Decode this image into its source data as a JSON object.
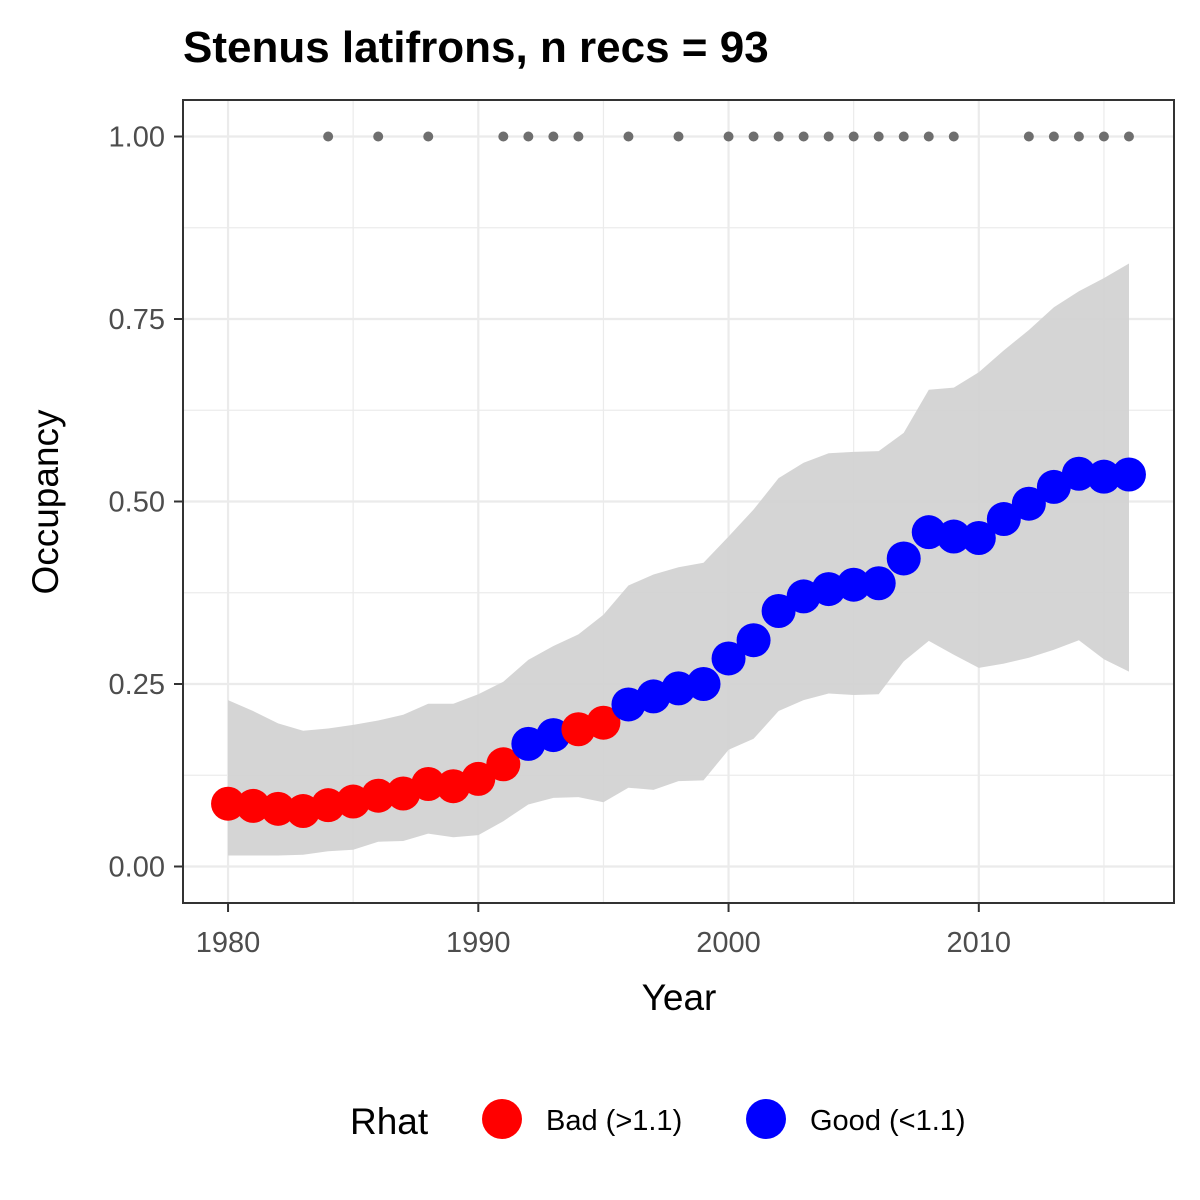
{
  "chart_data": {
    "type": "line",
    "title": "Stenus latifrons, n recs = 93",
    "xlabel": "Year",
    "ylabel": "Occupancy",
    "xlim": [
      1978.2,
      2017.8
    ],
    "ylim": [
      -0.05,
      1.05
    ],
    "x_ticks": [
      1980,
      1990,
      2000,
      2010
    ],
    "x_tick_labels": [
      "1980",
      "1990",
      "2000",
      "2010"
    ],
    "y_ticks": [
      0,
      0.25,
      0.5,
      0.75,
      1.0
    ],
    "y_tick_labels": [
      "0.00",
      "0.25",
      "0.50",
      "0.75",
      "1.00"
    ],
    "grid": true,
    "legend": {
      "title": "Rhat",
      "position": "bottom",
      "entries": [
        {
          "label": "Bad (>1.1)",
          "color": "#ff0000"
        },
        {
          "label": "Good (<1.1)",
          "color": "#0000ff"
        }
      ]
    },
    "colors": {
      "bad": "#ff0000",
      "good": "#0000ff",
      "ribbon": "#d3d3d3",
      "record_dots": "#6e6e6e",
      "grid": "#ebebeb",
      "panel_border": "#333333"
    },
    "series": [
      {
        "name": "Occupancy",
        "points": [
          {
            "x": 1980,
            "y": 0.086,
            "lower": 0.015,
            "upper": 0.228,
            "rhat": "bad"
          },
          {
            "x": 1981,
            "y": 0.083,
            "lower": 0.015,
            "upper": 0.213,
            "rhat": "bad"
          },
          {
            "x": 1982,
            "y": 0.079,
            "lower": 0.015,
            "upper": 0.196,
            "rhat": "bad"
          },
          {
            "x": 1983,
            "y": 0.076,
            "lower": 0.016,
            "upper": 0.186,
            "rhat": "bad"
          },
          {
            "x": 1984,
            "y": 0.084,
            "lower": 0.021,
            "upper": 0.189,
            "rhat": "bad"
          },
          {
            "x": 1985,
            "y": 0.089,
            "lower": 0.023,
            "upper": 0.194,
            "rhat": "bad"
          },
          {
            "x": 1986,
            "y": 0.097,
            "lower": 0.034,
            "upper": 0.2,
            "rhat": "bad"
          },
          {
            "x": 1987,
            "y": 0.1,
            "lower": 0.035,
            "upper": 0.208,
            "rhat": "bad"
          },
          {
            "x": 1988,
            "y": 0.113,
            "lower": 0.045,
            "upper": 0.223,
            "rhat": "bad"
          },
          {
            "x": 1989,
            "y": 0.11,
            "lower": 0.04,
            "upper": 0.223,
            "rhat": "bad"
          },
          {
            "x": 1990,
            "y": 0.12,
            "lower": 0.043,
            "upper": 0.236,
            "rhat": "bad"
          },
          {
            "x": 1991,
            "y": 0.14,
            "lower": 0.062,
            "upper": 0.253,
            "rhat": "bad"
          },
          {
            "x": 1992,
            "y": 0.168,
            "lower": 0.085,
            "upper": 0.283,
            "rhat": "good"
          },
          {
            "x": 1993,
            "y": 0.18,
            "lower": 0.094,
            "upper": 0.302,
            "rhat": "good"
          },
          {
            "x": 1994,
            "y": 0.188,
            "lower": 0.095,
            "upper": 0.318,
            "rhat": "bad"
          },
          {
            "x": 1995,
            "y": 0.197,
            "lower": 0.088,
            "upper": 0.345,
            "rhat": "bad"
          },
          {
            "x": 1996,
            "y": 0.222,
            "lower": 0.108,
            "upper": 0.385,
            "rhat": "good"
          },
          {
            "x": 1997,
            "y": 0.233,
            "lower": 0.105,
            "upper": 0.4,
            "rhat": "good"
          },
          {
            "x": 1998,
            "y": 0.244,
            "lower": 0.117,
            "upper": 0.41,
            "rhat": "good"
          },
          {
            "x": 1999,
            "y": 0.25,
            "lower": 0.118,
            "upper": 0.416,
            "rhat": "good"
          },
          {
            "x": 2000,
            "y": 0.285,
            "lower": 0.16,
            "upper": 0.452,
            "rhat": "good"
          },
          {
            "x": 2001,
            "y": 0.31,
            "lower": 0.175,
            "upper": 0.489,
            "rhat": "good"
          },
          {
            "x": 2002,
            "y": 0.35,
            "lower": 0.213,
            "upper": 0.532,
            "rhat": "good"
          },
          {
            "x": 2003,
            "y": 0.37,
            "lower": 0.228,
            "upper": 0.553,
            "rhat": "good"
          },
          {
            "x": 2004,
            "y": 0.38,
            "lower": 0.237,
            "upper": 0.566,
            "rhat": "good"
          },
          {
            "x": 2005,
            "y": 0.386,
            "lower": 0.235,
            "upper": 0.568,
            "rhat": "good"
          },
          {
            "x": 2006,
            "y": 0.388,
            "lower": 0.236,
            "upper": 0.569,
            "rhat": "good"
          },
          {
            "x": 2007,
            "y": 0.422,
            "lower": 0.281,
            "upper": 0.594,
            "rhat": "good"
          },
          {
            "x": 2008,
            "y": 0.458,
            "lower": 0.309,
            "upper": 0.653,
            "rhat": "good"
          },
          {
            "x": 2009,
            "y": 0.452,
            "lower": 0.29,
            "upper": 0.656,
            "rhat": "good"
          },
          {
            "x": 2010,
            "y": 0.45,
            "lower": 0.272,
            "upper": 0.677,
            "rhat": "good"
          },
          {
            "x": 2011,
            "y": 0.476,
            "lower": 0.278,
            "upper": 0.707,
            "rhat": "good"
          },
          {
            "x": 2012,
            "y": 0.497,
            "lower": 0.286,
            "upper": 0.735,
            "rhat": "good"
          },
          {
            "x": 2013,
            "y": 0.52,
            "lower": 0.297,
            "upper": 0.766,
            "rhat": "good"
          },
          {
            "x": 2014,
            "y": 0.538,
            "lower": 0.31,
            "upper": 0.788,
            "rhat": "good"
          },
          {
            "x": 2015,
            "y": 0.534,
            "lower": 0.284,
            "upper": 0.806,
            "rhat": "good"
          },
          {
            "x": 2016,
            "y": 0.537,
            "lower": 0.267,
            "upper": 0.826,
            "rhat": "good"
          }
        ]
      }
    ],
    "record_years": [
      1984,
      1986,
      1988,
      1991,
      1992,
      1993,
      1994,
      1996,
      1998,
      2000,
      2001,
      2002,
      2003,
      2004,
      2005,
      2006,
      2007,
      2008,
      2009,
      2012,
      2013,
      2014,
      2015,
      2016
    ],
    "record_y": 1.0
  }
}
